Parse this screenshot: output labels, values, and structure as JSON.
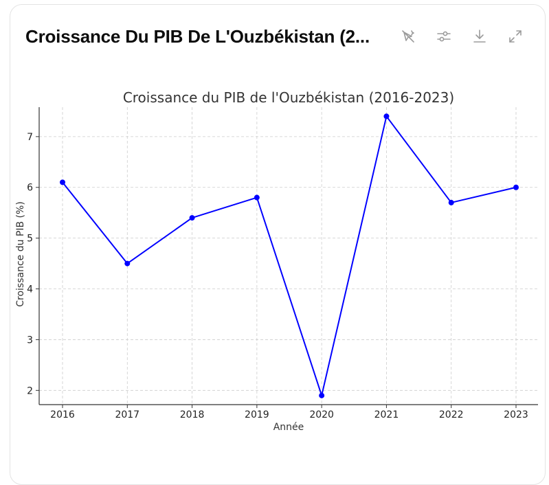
{
  "card": {
    "title": "Croissance Du PIB De L'Ouzbékistan (2..."
  },
  "toolbar": {
    "buttons": [
      {
        "name": "switch-to-interactive-button",
        "icon": "sparkle-off-icon"
      },
      {
        "name": "chart-options-button",
        "icon": "sliders-icon"
      },
      {
        "name": "download-button",
        "icon": "download-icon"
      },
      {
        "name": "expand-button",
        "icon": "expand-icon"
      }
    ]
  },
  "chart_data": {
    "type": "line",
    "title": "Croissance du PIB de l'Ouzbékistan (2016-2023)",
    "xlabel": "Année",
    "ylabel": "Croissance du PIB (%)",
    "x": [
      "2016",
      "2017",
      "2018",
      "2019",
      "2020",
      "2021",
      "2022",
      "2023"
    ],
    "series": [
      {
        "values": [
          6.1,
          4.5,
          5.4,
          5.8,
          1.9,
          7.4,
          5.7,
          6.0
        ],
        "color": "#0000ff"
      }
    ],
    "ylim": [
      1.72,
      7.58
    ],
    "yticks": [
      2,
      3,
      4,
      5,
      6,
      7
    ],
    "grid": true,
    "marker": "circle"
  }
}
